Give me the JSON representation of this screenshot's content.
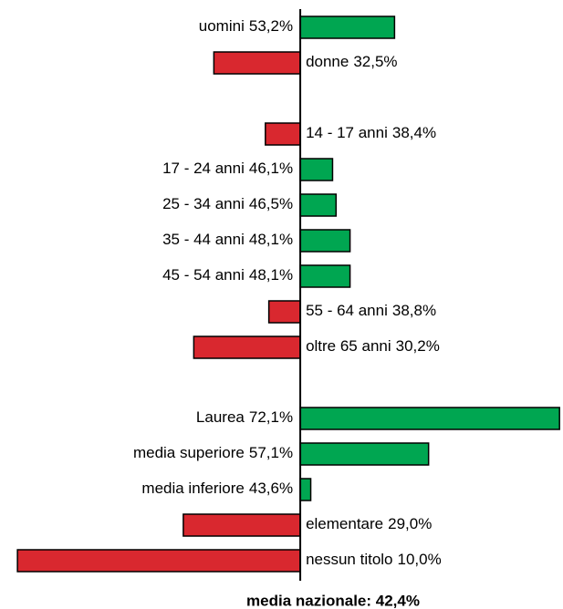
{
  "chart_data": {
    "type": "diverging_bar",
    "categories": [
      "uomini",
      "donne",
      null,
      "14 - 17 anni",
      "17 - 24 anni",
      "25 - 34 anni",
      "35 - 44 anni",
      "45 - 54 anni",
      "55 - 64 anni",
      "oltre 65 anni",
      null,
      "Laurea",
      "media superiore",
      "media inferiore",
      "elementare",
      "nessun titolo"
    ],
    "values": [
      53.2,
      32.5,
      null,
      38.4,
      46.1,
      46.5,
      48.1,
      48.1,
      38.8,
      30.2,
      null,
      72.1,
      57.1,
      43.6,
      29.0,
      10.0
    ],
    "value_labels": [
      "53,2%",
      "32,5%",
      null,
      "38,4%",
      "46,1%",
      "46,5%",
      "48,1%",
      "48,1%",
      "38,8%",
      "30,2%",
      null,
      "72,1%",
      "57,1%",
      "43,6%",
      "29,0%",
      "10,0%"
    ],
    "baseline": 42.4,
    "annotation": "media nazionale: 42,4%",
    "xlim": [
      8,
      72.5
    ],
    "positive_color": "#00a651",
    "negative_color": "#d9282f"
  }
}
